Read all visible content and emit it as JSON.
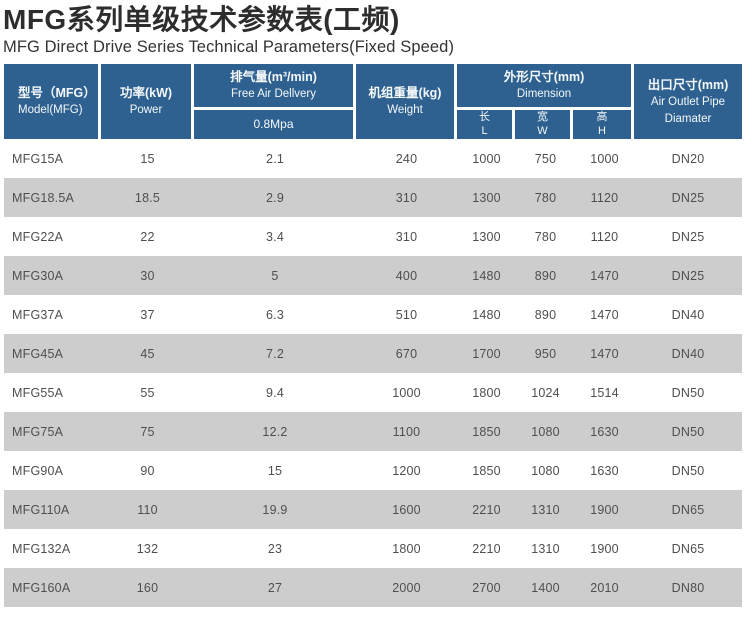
{
  "page": {
    "title": "MFG系列单级技术参数表(工频)",
    "subtitle": "MFG Direct Drive Series Technical Parameters(Fixed Speed)"
  },
  "colors": {
    "header_bg": "#2e6190",
    "header_text": "#f4f8fb",
    "row_bg": "#ffffff",
    "row_alt_bg": "#cdcdcd",
    "body_text": "#4f4f4f",
    "title_text": "#2d2d2d"
  },
  "table": {
    "headers": {
      "model": {
        "zh": "型号（MFG）",
        "en": "Model(MFG)"
      },
      "power": {
        "zh": "功率(kW)",
        "en": "Power"
      },
      "fad": {
        "zh": "排气量(m³/min)",
        "en": "Free Air Dellvery",
        "sub": "0.8Mpa"
      },
      "weight": {
        "zh": "机组重量(kg)",
        "en": "Weight"
      },
      "dimension": {
        "zh": "外形尺寸(mm)",
        "en": "Dimension",
        "sub": [
          {
            "zh": "长",
            "en": "L"
          },
          {
            "zh": "宽",
            "en": "W"
          },
          {
            "zh": "高",
            "en": "H"
          }
        ]
      },
      "outlet": {
        "zh": "出口尺寸(mm)",
        "en": "Air Outlet Pipe Diamater"
      }
    },
    "rows": [
      [
        "MFG15A",
        "15",
        "2.1",
        "240",
        "1000",
        "750",
        "1000",
        "DN20"
      ],
      [
        "MFG18.5A",
        "18.5",
        "2.9",
        "310",
        "1300",
        "780",
        "1120",
        "DN25"
      ],
      [
        "MFG22A",
        "22",
        "3.4",
        "310",
        "1300",
        "780",
        "1120",
        "DN25"
      ],
      [
        "MFG30A",
        "30",
        "5",
        "400",
        "1480",
        "890",
        "1470",
        "DN25"
      ],
      [
        "MFG37A",
        "37",
        "6.3",
        "510",
        "1480",
        "890",
        "1470",
        "DN40"
      ],
      [
        "MFG45A",
        "45",
        "7.2",
        "670",
        "1700",
        "950",
        "1470",
        "DN40"
      ],
      [
        "MFG55A",
        "55",
        "9.4",
        "1000",
        "1800",
        "1024",
        "1514",
        "DN50"
      ],
      [
        "MFG75A",
        "75",
        "12.2",
        "1100",
        "1850",
        "1080",
        "1630",
        "DN50"
      ],
      [
        "MFG90A",
        "90",
        "15",
        "1200",
        "1850",
        "1080",
        "1630",
        "DN50"
      ],
      [
        "MFG110A",
        "110",
        "19.9",
        "1600",
        "2210",
        "1310",
        "1900",
        "DN65"
      ],
      [
        "MFG132A",
        "132",
        "23",
        "1800",
        "2210",
        "1310",
        "1900",
        "DN65"
      ],
      [
        "MFG160A",
        "160",
        "27",
        "2000",
        "2700",
        "1400",
        "2010",
        "DN80"
      ]
    ]
  }
}
